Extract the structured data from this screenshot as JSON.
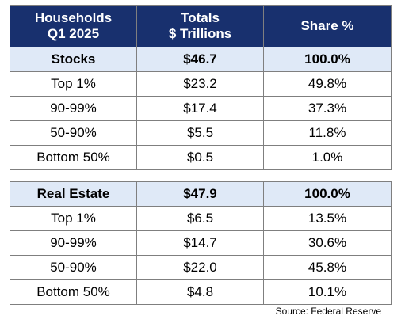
{
  "header": {
    "col1_line1": "Households",
    "col1_line2": "Q1 2025",
    "col2_line1": "Totals",
    "col2_line2": "$ Trillions",
    "col3": "Share %"
  },
  "chart_data": [
    {
      "type": "table",
      "columns": [
        "Households Q1 2025",
        "Totals $ Trillions",
        "Share %"
      ],
      "summary": {
        "label": "Stocks",
        "total": "$46.7",
        "share": "100.0%"
      },
      "rows": [
        {
          "label": "Top 1%",
          "total": "$23.2",
          "share": "49.8%"
        },
        {
          "label": "90-99%",
          "total": "$17.4",
          "share": "37.3%"
        },
        {
          "label": "50-90%",
          "total": "$5.5",
          "share": "11.8%"
        },
        {
          "label": "Bottom 50%",
          "total": "$0.5",
          "share": "1.0%"
        }
      ]
    },
    {
      "type": "table",
      "columns": [
        "Households Q1 2025",
        "Totals $ Trillions",
        "Share %"
      ],
      "summary": {
        "label": "Real Estate",
        "total": "$47.9",
        "share": "100.0%"
      },
      "rows": [
        {
          "label": "Top 1%",
          "total": "$6.5",
          "share": "13.5%"
        },
        {
          "label": "90-99%",
          "total": "$14.7",
          "share": "30.6%"
        },
        {
          "label": "50-90%",
          "total": "$22.0",
          "share": "45.8%"
        },
        {
          "label": "Bottom 50%",
          "total": "$4.8",
          "share": "10.1%"
        }
      ]
    }
  ],
  "source": "Source: Federal Reserve",
  "colors": {
    "header_bg": "#18306e",
    "summary_bg": "#dfe9f7",
    "border": "#7f7f7f"
  }
}
